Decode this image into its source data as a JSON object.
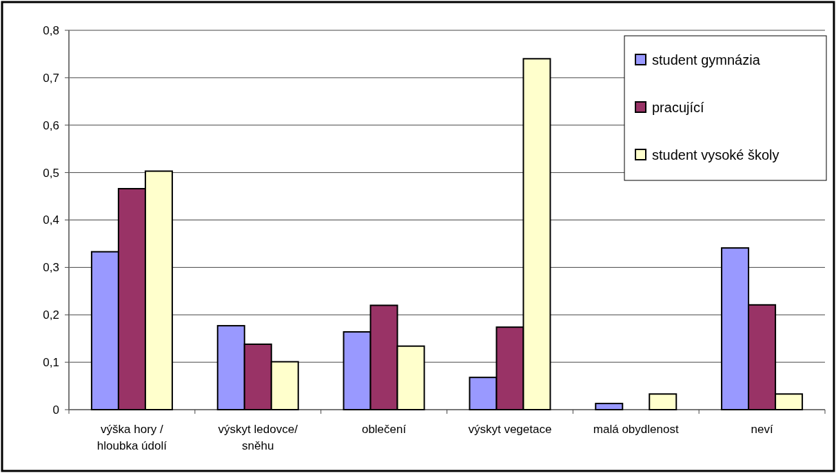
{
  "chart_data": {
    "type": "bar",
    "categories": [
      "výška hory / hloubka údolí",
      "výskyt ledovce/ sněhu",
      "oblečení",
      "výskyt vegetace",
      "malá obydlenost",
      "neví"
    ],
    "series": [
      {
        "name": "student gymnázia",
        "color": "#9999ff",
        "values": [
          0.333,
          0.177,
          0.164,
          0.068,
          0.013,
          0.341
        ]
      },
      {
        "name": "pracující",
        "color": "#993366",
        "values": [
          0.466,
          0.138,
          0.22,
          0.174,
          0,
          0.221
        ]
      },
      {
        "name": "student vysoké školy",
        "color": "#ffffcc",
        "values": [
          0.503,
          0.101,
          0.134,
          0.74,
          0.033,
          0.033
        ]
      }
    ],
    "ylim": [
      0,
      0.8
    ],
    "yticks": [
      0,
      {
        "value": 0.1,
        "label": "0,1"
      },
      {
        "value": 0.2,
        "label": "0,2"
      },
      {
        "value": 0.3,
        "label": "0,3"
      },
      {
        "value": 0.4,
        "label": "0,4"
      },
      {
        "value": 0.5,
        "label": "0,5"
      },
      {
        "value": 0.6,
        "label": "0,6"
      },
      {
        "value": 0.7,
        "label": "0,7"
      },
      {
        "value": 0.8,
        "label": "0,8"
      }
    ],
    "grid": "y",
    "legend": "top right"
  }
}
